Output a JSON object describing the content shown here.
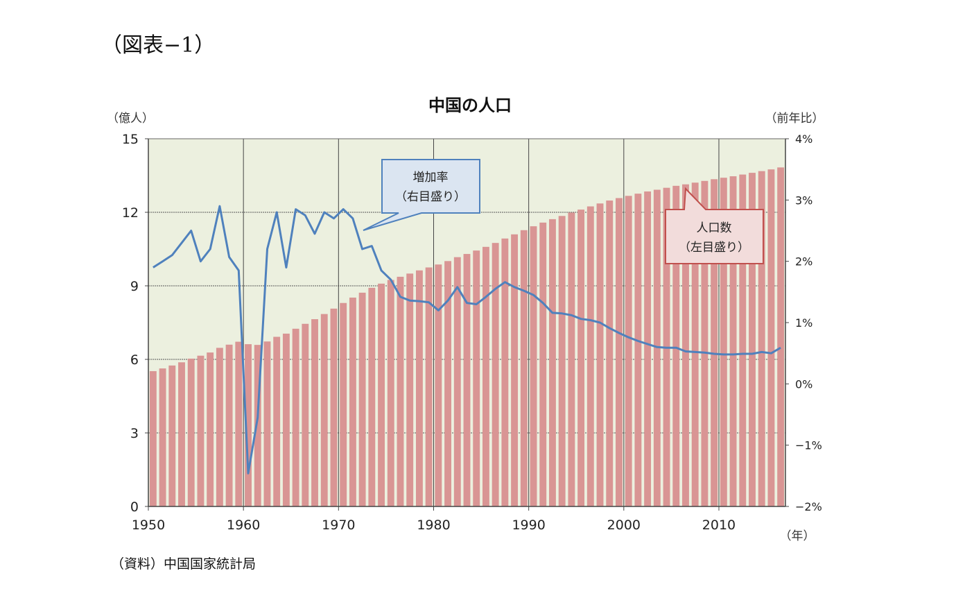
{
  "figure_label": "（図表−1）",
  "source_note": "（資料）中国国家統計局",
  "chart_data": {
    "type": "bar",
    "title": "中国の人口",
    "left_axis_unit": "（億人）",
    "right_axis_unit": "（前年比）",
    "x_unit": "（年）",
    "xlim": [
      1950,
      2016
    ],
    "x_ticks": [
      1950,
      1960,
      1970,
      1980,
      1990,
      2000,
      2010
    ],
    "ylim_left": [
      0,
      15
    ],
    "y_ticks_left": [
      "0",
      "3",
      "6",
      "9",
      "12",
      "15"
    ],
    "ylim_right": [
      -2,
      4
    ],
    "y_ticks_right": [
      "−2%",
      "−1%",
      "0%",
      "1%",
      "2%",
      "3%",
      "4%"
    ],
    "grid": true,
    "plot_background": "#ecf0df",
    "bar_color": "#d99594",
    "line_color": "#4f81bd",
    "years": [
      1950,
      1951,
      1952,
      1953,
      1954,
      1955,
      1956,
      1957,
      1958,
      1959,
      1960,
      1961,
      1962,
      1963,
      1964,
      1965,
      1966,
      1967,
      1968,
      1969,
      1970,
      1971,
      1972,
      1973,
      1974,
      1975,
      1976,
      1977,
      1978,
      1979,
      1980,
      1981,
      1982,
      1983,
      1984,
      1985,
      1986,
      1987,
      1988,
      1989,
      1990,
      1991,
      1992,
      1993,
      1994,
      1995,
      1996,
      1997,
      1998,
      1999,
      2000,
      2001,
      2002,
      2003,
      2004,
      2005,
      2006,
      2007,
      2008,
      2009,
      2010,
      2011,
      2012,
      2013,
      2014,
      2015,
      2016
    ],
    "series": [
      {
        "name": "人口数",
        "axis": "left",
        "kind": "bar",
        "values": [
          5.52,
          5.63,
          5.75,
          5.88,
          6.03,
          6.15,
          6.28,
          6.47,
          6.6,
          6.72,
          6.62,
          6.59,
          6.73,
          6.92,
          7.05,
          7.25,
          7.45,
          7.64,
          7.85,
          8.07,
          8.3,
          8.52,
          8.72,
          8.92,
          9.09,
          9.24,
          9.37,
          9.5,
          9.63,
          9.75,
          9.87,
          10.01,
          10.17,
          10.3,
          10.44,
          10.59,
          10.75,
          10.93,
          11.1,
          11.27,
          11.43,
          11.58,
          11.72,
          11.85,
          11.99,
          12.11,
          12.24,
          12.36,
          12.48,
          12.58,
          12.67,
          12.76,
          12.85,
          12.92,
          13.0,
          13.08,
          13.14,
          13.21,
          13.28,
          13.35,
          13.41,
          13.47,
          13.54,
          13.61,
          13.68,
          13.75,
          13.83
        ]
      },
      {
        "name": "増加率",
        "axis": "right",
        "kind": "line",
        "values": [
          1.9,
          2.0,
          2.1,
          2.3,
          2.5,
          2.0,
          2.2,
          2.9,
          2.07,
          1.85,
          -1.46,
          -0.55,
          2.2,
          2.8,
          1.9,
          2.85,
          2.75,
          2.45,
          2.8,
          2.7,
          2.85,
          2.7,
          2.2,
          2.25,
          1.85,
          1.7,
          1.42,
          1.36,
          1.35,
          1.33,
          1.2,
          1.36,
          1.58,
          1.32,
          1.3,
          1.42,
          1.55,
          1.66,
          1.58,
          1.52,
          1.45,
          1.32,
          1.16,
          1.15,
          1.12,
          1.06,
          1.04,
          1.0,
          0.91,
          0.83,
          0.76,
          0.7,
          0.65,
          0.6,
          0.59,
          0.59,
          0.53,
          0.52,
          0.51,
          0.49,
          0.48,
          0.48,
          0.49,
          0.49,
          0.52,
          0.5,
          0.59
        ]
      }
    ],
    "annotations": [
      {
        "name": "rate-callout",
        "lines": [
          "増加率",
          "（右目盛り）"
        ]
      },
      {
        "name": "population-callout",
        "lines": [
          "人口数",
          "（左目盛り）"
        ]
      }
    ]
  }
}
